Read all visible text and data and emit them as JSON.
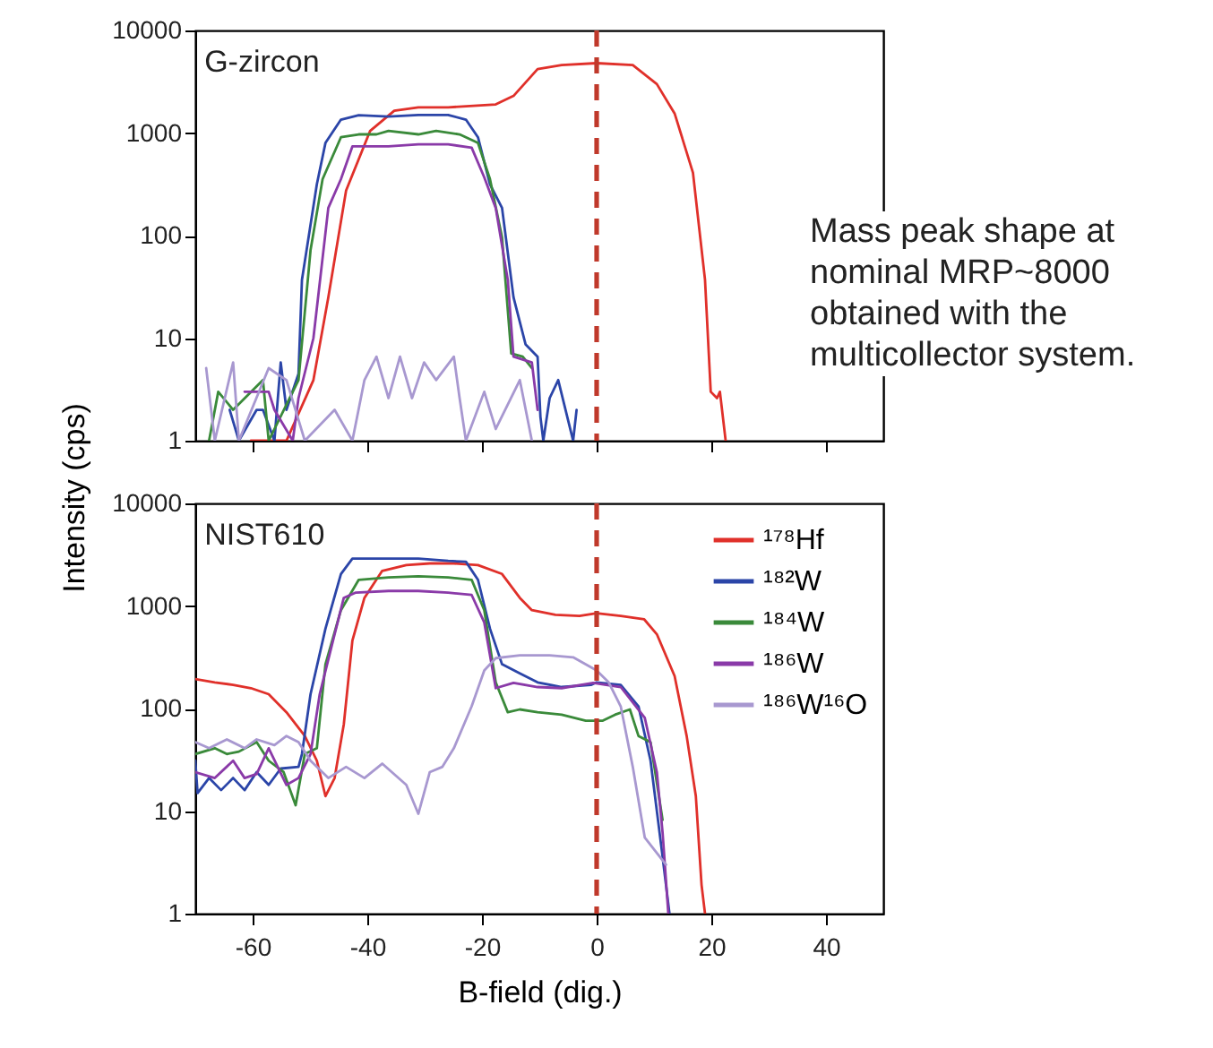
{
  "chart_data": [
    {
      "type": "line",
      "title": "G-zircon",
      "ylabel": "Intensity (cps)",
      "log": true,
      "xlim": [
        -70,
        50
      ],
      "xticks": [
        -60,
        -40,
        -20,
        0,
        20,
        40
      ],
      "ylim": [
        1,
        10000
      ],
      "yticks": [
        1,
        10,
        100,
        1000,
        10000
      ],
      "tick_labels": "y",
      "annotations": [
        "Mass peak shape at nominal MRP~8000 obtained with the multicollector system."
      ],
      "ref_lines": [
        {
          "axis": "x",
          "value": 0,
          "color": "#c0392b",
          "line_style": "dashed"
        }
      ],
      "series": [
        {
          "color": "#e0302a",
          "x": [
            -60.3,
            -54.1,
            -49.4,
            -46.8,
            -43.7,
            -39.5,
            -35.3,
            -31.1,
            -25.9,
            -17.6,
            -14.5,
            -10.3,
            -6.1,
            0,
            6.3,
            10.5,
            13.6,
            16.8,
            18.9,
            19.9,
            21.0,
            21.5,
            22.5
          ],
          "values": [
            1,
            1,
            3.9,
            25,
            275,
            1050,
            1650,
            1780,
            1780,
            1900,
            2300,
            4200,
            4600,
            4800,
            4600,
            3000,
            1550,
            410,
            37,
            3,
            2.6,
            3,
            1
          ]
        },
        {
          "color": "#2b45a8",
          "x": [
            -64.0,
            -62.4,
            -59.3,
            -58.2,
            -56.2,
            -55.1,
            -54.1,
            -52.0,
            -51.4,
            -48.8,
            -47.3,
            -44.6,
            -41.5,
            -36.3,
            -31.1,
            -25.9,
            -22.8,
            -20.7,
            -18.6,
            -16.5,
            -14.5,
            -12.4,
            -10.3,
            -9.8,
            -9.3,
            -8.2,
            -6.7,
            -4.1,
            -3.5
          ],
          "values": [
            2,
            1,
            2,
            2,
            1,
            5.8,
            2,
            4.5,
            37,
            316,
            800,
            1350,
            1490,
            1450,
            1500,
            1500,
            1350,
            910,
            316,
            186,
            25,
            8.7,
            6.6,
            1.7,
            1,
            2.6,
            3.9,
            1,
            2
          ]
        },
        {
          "color": "#3a8a3a",
          "x": [
            -67.6,
            -66.0,
            -63.4,
            -58.2,
            -57.2,
            -52.0,
            -49.9,
            -47.8,
            -44.6,
            -41.5,
            -38.4,
            -36.3,
            -31.1,
            -28.0,
            -23.9,
            -20.7,
            -18.6,
            -16.5,
            -14.9,
            -12.9,
            -11.3
          ],
          "values": [
            1,
            3,
            2,
            3.9,
            1,
            3.9,
            72,
            355,
            910,
            970,
            970,
            1050,
            970,
            1050,
            970,
            800,
            355,
            96,
            7.1,
            6.6,
            5.1
          ]
        },
        {
          "color": "#8a3aa8",
          "x": [
            -61.4,
            -57.2,
            -56.2,
            -53.0,
            -52.0,
            -49.4,
            -46.8,
            -44.6,
            -42.6,
            -36.3,
            -31.1,
            -25.9,
            -21.8,
            -19.6,
            -17.6,
            -15.5,
            -14.5,
            -11.3,
            -10.3
          ],
          "values": [
            3,
            3,
            2,
            1,
            2.6,
            10,
            186,
            355,
            740,
            740,
            775,
            775,
            720,
            370,
            186,
            37,
            6.6,
            5.8,
            2
          ]
        },
        {
          "color": "#a898d0",
          "x": [
            -68.1,
            -66.6,
            -63.4,
            -62.4,
            -57.2,
            -54.1,
            -50.9,
            -45.7,
            -42.6,
            -40.5,
            -38.4,
            -36.3,
            -34.3,
            -32.2,
            -30.1,
            -28.0,
            -24.9,
            -23.9,
            -22.8,
            -19.6,
            -17.6,
            -13.4,
            -11.3
          ],
          "values": [
            5.1,
            1,
            5.8,
            1,
            5.1,
            3.9,
            1,
            2,
            1,
            3.9,
            6.6,
            2.6,
            6.6,
            2.6,
            5.8,
            3.9,
            6.6,
            2.6,
            1,
            3,
            1.3,
            3.9,
            1
          ]
        }
      ]
    },
    {
      "type": "line",
      "title": "NIST610",
      "xlabel": "B-field (dig.)",
      "log": true,
      "xlim": [
        -70,
        50
      ],
      "xticks": [
        -60,
        -40,
        -20,
        0,
        20,
        40
      ],
      "ylim": [
        1,
        10000
      ],
      "yticks": [
        1,
        10,
        100,
        1000,
        10000
      ],
      "legend": "top right",
      "ref_lines": [
        {
          "axis": "x",
          "value": 0,
          "color": "#c0392b",
          "line_style": "dashed"
        }
      ],
      "series": [
        {
          "name": "¹⁷⁸Hf",
          "color": "#e0302a",
          "x": [
            -70,
            -66.6,
            -63.4,
            -60.3,
            -57.2,
            -54.1,
            -50.9,
            -48.8,
            -47.3,
            -45.7,
            -44.1,
            -42.6,
            -40.5,
            -37.4,
            -33.2,
            -29.1,
            -24.9,
            -20.7,
            -16.5,
            -13.4,
            -11.3,
            -7.2,
            -3.0,
            0,
            4.2,
            8.3,
            10.5,
            13.6,
            15.7,
            17.3,
            18.3,
            18.9
          ],
          "values": [
            194,
            180,
            170,
            158,
            138,
            92,
            54,
            31,
            14,
            21,
            70,
            460,
            1200,
            2200,
            2500,
            2600,
            2600,
            2500,
            2050,
            1200,
            910,
            820,
            800,
            850,
            800,
            740,
            530,
            207,
            54,
            14,
            1.9,
            1
          ]
        },
        {
          "name": "¹⁸²W",
          "color": "#2b45a8",
          "x": [
            -70,
            -69.6,
            -67.6,
            -65.5,
            -63.4,
            -61.4,
            -59.3,
            -57.2,
            -55.1,
            -52.0,
            -51.4,
            -49.9,
            -47.3,
            -44.6,
            -42.6,
            -36.3,
            -31.1,
            -25.9,
            -22.8,
            -20.7,
            -18.6,
            -16.5,
            -13.4,
            -10.3,
            -6.1,
            -1.0,
            0,
            4.2,
            7.3,
            9.4,
            11.5,
            12.7
          ],
          "values": [
            31,
            15,
            21,
            16,
            21,
            16,
            24,
            18,
            26,
            27,
            36,
            138,
            600,
            2050,
            2900,
            2900,
            2900,
            2750,
            2700,
            1800,
            600,
            270,
            220,
            180,
            162,
            170,
            180,
            170,
            105,
            31,
            3.6,
            1
          ]
        },
        {
          "name": "¹⁸⁴W",
          "color": "#3a8a3a",
          "x": [
            -70,
            -66.6,
            -64.5,
            -62.4,
            -59.3,
            -57.2,
            -54.6,
            -52.5,
            -50.9,
            -48.8,
            -47.3,
            -44.6,
            -41.5,
            -36.3,
            -31.1,
            -25.9,
            -21.8,
            -19.6,
            -17.6,
            -15.5,
            -13.4,
            -10.3,
            -6.1,
            -1.9,
            1.0,
            3.2,
            5.8,
            7.3,
            9.4,
            11.5
          ],
          "values": [
            36,
            41,
            36,
            38,
            47,
            31,
            24,
            11.4,
            36,
            41,
            270,
            910,
            1800,
            1900,
            1950,
            1900,
            1800,
            910,
            180,
            92,
            98,
            92,
            87,
            76,
            76,
            87,
            98,
            54,
            47,
            8.2
          ]
        },
        {
          "name": "¹⁸⁶W",
          "color": "#8a3aa8",
          "x": [
            -70,
            -66.6,
            -63.4,
            -61.4,
            -59.3,
            -57.2,
            -54.1,
            -52.0,
            -49.9,
            -48.3,
            -46.2,
            -44.1,
            -42.0,
            -36.3,
            -31.1,
            -25.9,
            -21.8,
            -19.6,
            -17.6,
            -14.5,
            -10.3,
            -6.1,
            -0.6,
            4.2,
            8.4,
            10.5,
            11.5,
            12.5
          ],
          "values": [
            24,
            21,
            31,
            21,
            23,
            41,
            18,
            21,
            36,
            138,
            410,
            1200,
            1350,
            1400,
            1400,
            1350,
            1280,
            690,
            158,
            178,
            162,
            158,
            178,
            162,
            81,
            24,
            6.2,
            1
          ]
        },
        {
          "name": "¹⁸⁶W¹⁶O",
          "color": "#a898d0",
          "x": [
            -70,
            -67.6,
            -64.5,
            -61.4,
            -59.3,
            -56.2,
            -54.1,
            -52.0,
            -49.9,
            -46.8,
            -43.7,
            -40.5,
            -37.4,
            -33.2,
            -31.1,
            -29.1,
            -26.9,
            -24.9,
            -21.8,
            -19.6,
            -17.6,
            -13.4,
            -8.2,
            -4.1,
            0,
            2.1,
            4.2,
            6.3,
            8.4,
            12.1
          ],
          "values": [
            47,
            41,
            50,
            41,
            50,
            44,
            54,
            47,
            31,
            21,
            27,
            21,
            29,
            18,
            9.4,
            24,
            27,
            41,
            105,
            235,
            310,
            330,
            330,
            316,
            235,
            180,
            105,
            27,
            5.5,
            3
          ]
        }
      ]
    }
  ]
}
